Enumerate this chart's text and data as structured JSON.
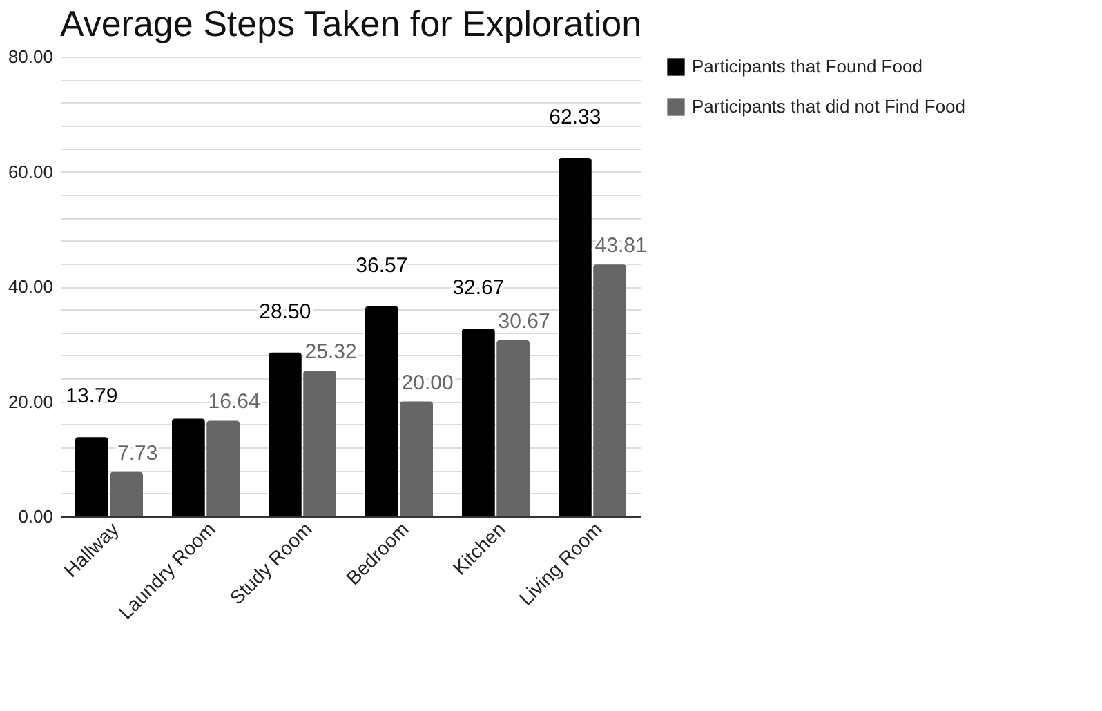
{
  "chart_data": {
    "type": "bar",
    "title": "Average Steps Taken for Exploration",
    "categories": [
      "Hallway",
      "Laundry Room",
      "Study Room",
      "Bedroom",
      "Kitchen",
      "Living Room"
    ],
    "series": [
      {
        "name": "Participants that Found Food",
        "color": "#000000",
        "values": [
          13.79,
          17.0,
          28.5,
          36.57,
          32.67,
          62.33
        ],
        "value_labels": [
          "13.79",
          null,
          "28.50",
          "36.57",
          "32.67",
          "62.33"
        ]
      },
      {
        "name": "Participants that did not Find Food",
        "color": "#666666",
        "values": [
          7.73,
          16.64,
          25.32,
          20.0,
          30.67,
          43.81
        ],
        "value_labels": [
          "7.73",
          "16.64",
          "25.32",
          "20.00",
          "30.67",
          "43.81"
        ]
      }
    ],
    "ylim": [
      0,
      80
    ],
    "yticks": [
      {
        "value": 0,
        "label": "0.00"
      },
      {
        "value": 4,
        "label": null
      },
      {
        "value": 8,
        "label": null
      },
      {
        "value": 12,
        "label": null
      },
      {
        "value": 16,
        "label": null
      },
      {
        "value": 20,
        "label": "20.00"
      },
      {
        "value": 24,
        "label": null
      },
      {
        "value": 28,
        "label": null
      },
      {
        "value": 32,
        "label": null
      },
      {
        "value": 36,
        "label": null
      },
      {
        "value": 40,
        "label": "40.00"
      },
      {
        "value": 44,
        "label": null
      },
      {
        "value": 48,
        "label": null
      },
      {
        "value": 52,
        "label": null
      },
      {
        "value": 56,
        "label": null
      },
      {
        "value": 60,
        "label": "60.00"
      },
      {
        "value": 64,
        "label": null
      },
      {
        "value": 68,
        "label": null
      },
      {
        "value": 72,
        "label": null
      },
      {
        "value": 76,
        "label": null
      },
      {
        "value": 80,
        "label": "80.00"
      }
    ],
    "grid": true,
    "legend": "top right"
  }
}
